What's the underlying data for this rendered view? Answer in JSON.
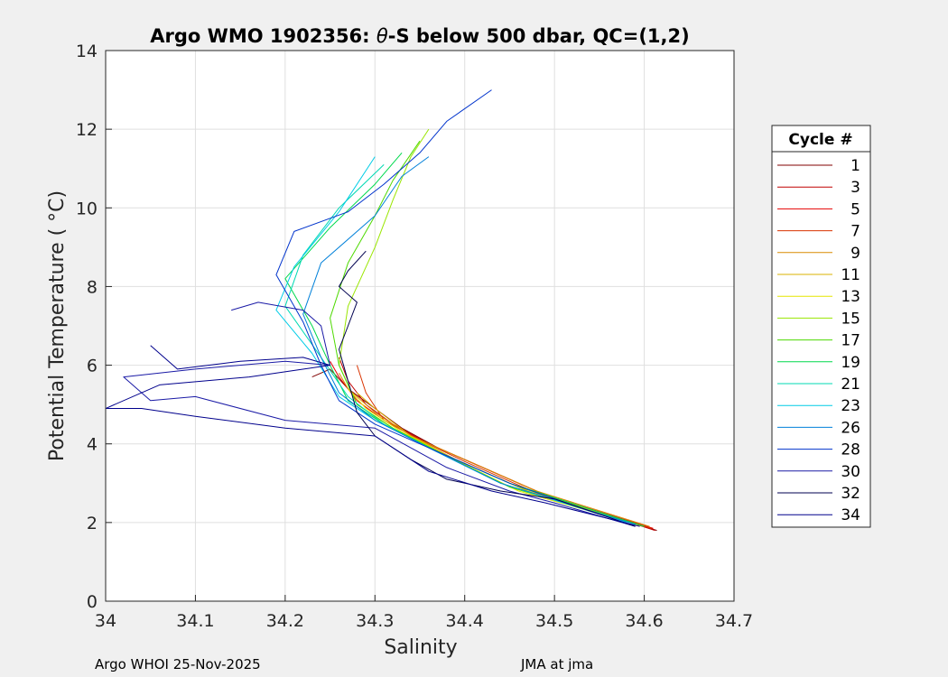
{
  "chart_data": {
    "type": "line",
    "title": "Argo WMO 1902356: θ-S below 500 dbar,  QC=(1,2)",
    "title_prefix": "Argo WMO 1902356: ",
    "title_theta": "θ",
    "title_suffix": "-S below 500 dbar,  QC=(1,2)",
    "xlabel": "Salinity",
    "ylabel": "Potential Temperature ( °C)",
    "xlim": [
      34,
      34.7
    ],
    "ylim": [
      0,
      14
    ],
    "xticks": [
      "34",
      "34.1",
      "34.2",
      "34.3",
      "34.4",
      "34.5",
      "34.6",
      "34.7"
    ],
    "yticks": [
      "0",
      "2",
      "4",
      "6",
      "8",
      "10",
      "12",
      "14"
    ],
    "grid": true,
    "legend_title": "Cycle #",
    "legend_position": "right",
    "series": [
      {
        "name": "1",
        "color": "#800000",
        "x": [
          34.614,
          34.5,
          34.42,
          34.37,
          34.33,
          34.3,
          34.27,
          34.25,
          34.23
        ],
        "y": [
          1.8,
          2.6,
          3.4,
          3.9,
          4.4,
          4.9,
          5.4,
          5.9,
          5.7
        ]
      },
      {
        "name": "3",
        "color": "#c00000",
        "x": [
          34.612,
          34.49,
          34.41,
          34.36,
          34.32,
          34.29,
          34.27,
          34.26
        ],
        "y": [
          1.8,
          2.7,
          3.5,
          4.0,
          4.5,
          5.0,
          5.6,
          6.2
        ]
      },
      {
        "name": "5",
        "color": "#e60000",
        "x": [
          34.61,
          34.49,
          34.41,
          34.35,
          34.31,
          34.28,
          34.26,
          34.25
        ],
        "y": [
          1.85,
          2.7,
          3.5,
          4.1,
          4.6,
          5.1,
          5.7,
          6.1
        ]
      },
      {
        "name": "7",
        "color": "#d93300",
        "x": [
          34.608,
          34.48,
          34.4,
          34.35,
          34.31,
          34.29,
          34.28
        ],
        "y": [
          1.85,
          2.75,
          3.55,
          4.1,
          4.6,
          5.3,
          6.0
        ]
      },
      {
        "name": "9",
        "color": "#d98c00",
        "x": [
          34.606,
          34.48,
          34.4,
          34.34,
          34.3,
          34.27,
          34.26
        ],
        "y": [
          1.9,
          2.8,
          3.6,
          4.2,
          4.8,
          5.4,
          5.8
        ]
      },
      {
        "name": "11",
        "color": "#d9b300",
        "x": [
          34.6,
          34.47,
          34.39,
          34.34,
          34.3,
          34.28
        ],
        "y": [
          1.9,
          2.8,
          3.6,
          4.2,
          4.9,
          5.3
        ]
      },
      {
        "name": "13",
        "color": "#e6e600",
        "x": [
          34.6,
          34.46,
          34.38,
          34.33,
          34.29,
          34.27
        ],
        "y": [
          1.9,
          2.8,
          3.7,
          4.3,
          4.9,
          5.4
        ]
      },
      {
        "name": "15",
        "color": "#99e600",
        "x": [
          34.6,
          34.46,
          34.38,
          34.32,
          34.28,
          34.26,
          34.27,
          34.3,
          34.32,
          34.34,
          34.36
        ],
        "y": [
          1.9,
          2.9,
          3.7,
          4.4,
          5.0,
          6.0,
          7.5,
          9.0,
          10.2,
          11.3,
          12.0
        ]
      },
      {
        "name": "17",
        "color": "#4dd900",
        "x": [
          34.6,
          34.45,
          34.37,
          34.32,
          34.28,
          34.26,
          34.25,
          34.27,
          34.3,
          34.32,
          34.35
        ],
        "y": [
          1.9,
          2.9,
          3.8,
          4.4,
          5.0,
          6.0,
          7.2,
          8.6,
          9.8,
          10.7,
          11.7
        ]
      },
      {
        "name": "19",
        "color": "#00d94d",
        "x": [
          34.6,
          34.45,
          34.37,
          34.31,
          34.27,
          34.25,
          34.23,
          34.2,
          34.25,
          34.3,
          34.33
        ],
        "y": [
          1.9,
          3.0,
          3.8,
          4.5,
          5.1,
          6.0,
          7.0,
          8.2,
          9.5,
          10.6,
          11.4
        ]
      },
      {
        "name": "21",
        "color": "#00d9b3",
        "x": [
          34.58,
          34.44,
          34.36,
          34.31,
          34.27,
          34.24,
          34.2,
          34.22,
          34.26,
          34.31
        ],
        "y": [
          2.0,
          3.0,
          3.9,
          4.5,
          5.2,
          6.2,
          7.5,
          8.8,
          10.0,
          11.1
        ]
      },
      {
        "name": "23",
        "color": "#00cce6",
        "x": [
          34.58,
          34.44,
          34.36,
          34.3,
          34.26,
          34.23,
          34.19,
          34.21,
          34.26,
          34.3
        ],
        "y": [
          2.0,
          3.0,
          3.9,
          4.6,
          5.2,
          6.3,
          7.4,
          8.5,
          9.9,
          11.3
        ]
      },
      {
        "name": "26",
        "color": "#0080d9",
        "x": [
          34.59,
          34.44,
          34.36,
          34.3,
          34.26,
          34.24,
          34.22,
          34.24,
          34.3,
          34.33,
          34.36
        ],
        "y": [
          1.95,
          3.0,
          3.9,
          4.6,
          5.3,
          6.2,
          7.3,
          8.6,
          9.8,
          10.8,
          11.3
        ]
      },
      {
        "name": "28",
        "color": "#0033cc",
        "x": [
          34.59,
          34.45,
          34.37,
          34.3,
          34.26,
          34.24,
          34.22,
          34.19,
          34.21,
          34.27,
          34.31,
          34.35,
          34.38,
          34.43
        ],
        "y": [
          1.9,
          3.0,
          3.8,
          4.5,
          5.1,
          6.0,
          7.1,
          8.3,
          9.4,
          9.9,
          10.6,
          11.4,
          12.2,
          13.0
        ]
      },
      {
        "name": "30",
        "color": "#1a1aa6",
        "x": [
          34.59,
          34.5,
          34.45,
          34.38,
          34.3,
          34.2,
          34.1,
          34.05,
          34.02,
          34.1,
          34.2,
          34.25,
          34.24,
          34.22,
          34.17,
          34.14
        ],
        "y": [
          1.9,
          2.5,
          2.8,
          3.4,
          4.4,
          4.6,
          5.2,
          5.1,
          5.7,
          5.9,
          6.1,
          6.0,
          7.0,
          7.4,
          7.6,
          7.4
        ]
      },
      {
        "name": "32",
        "color": "#000050",
        "x": [
          34.59,
          34.5,
          34.44,
          34.38,
          34.34,
          34.3,
          34.28,
          34.27,
          34.26,
          34.27,
          34.28,
          34.26,
          34.27,
          34.29
        ],
        "y": [
          1.9,
          2.6,
          2.8,
          3.1,
          3.6,
          4.2,
          4.8,
          5.6,
          6.4,
          7.0,
          7.6,
          8.0,
          8.4,
          8.9
        ]
      },
      {
        "name": "34",
        "color": "#00008c",
        "x": [
          34.595,
          34.49,
          34.43,
          34.36,
          34.3,
          34.2,
          34.1,
          34.04,
          34.0,
          34.06,
          34.16,
          34.25,
          34.22,
          34.15,
          34.08,
          34.05
        ],
        "y": [
          1.9,
          2.5,
          2.8,
          3.3,
          4.2,
          4.4,
          4.7,
          4.9,
          4.9,
          5.5,
          5.7,
          6.0,
          6.2,
          6.1,
          5.9,
          6.5
        ]
      }
    ]
  },
  "footer": {
    "left": "Argo WHOI 25-Nov-2025",
    "right": "JMA at jma"
  }
}
